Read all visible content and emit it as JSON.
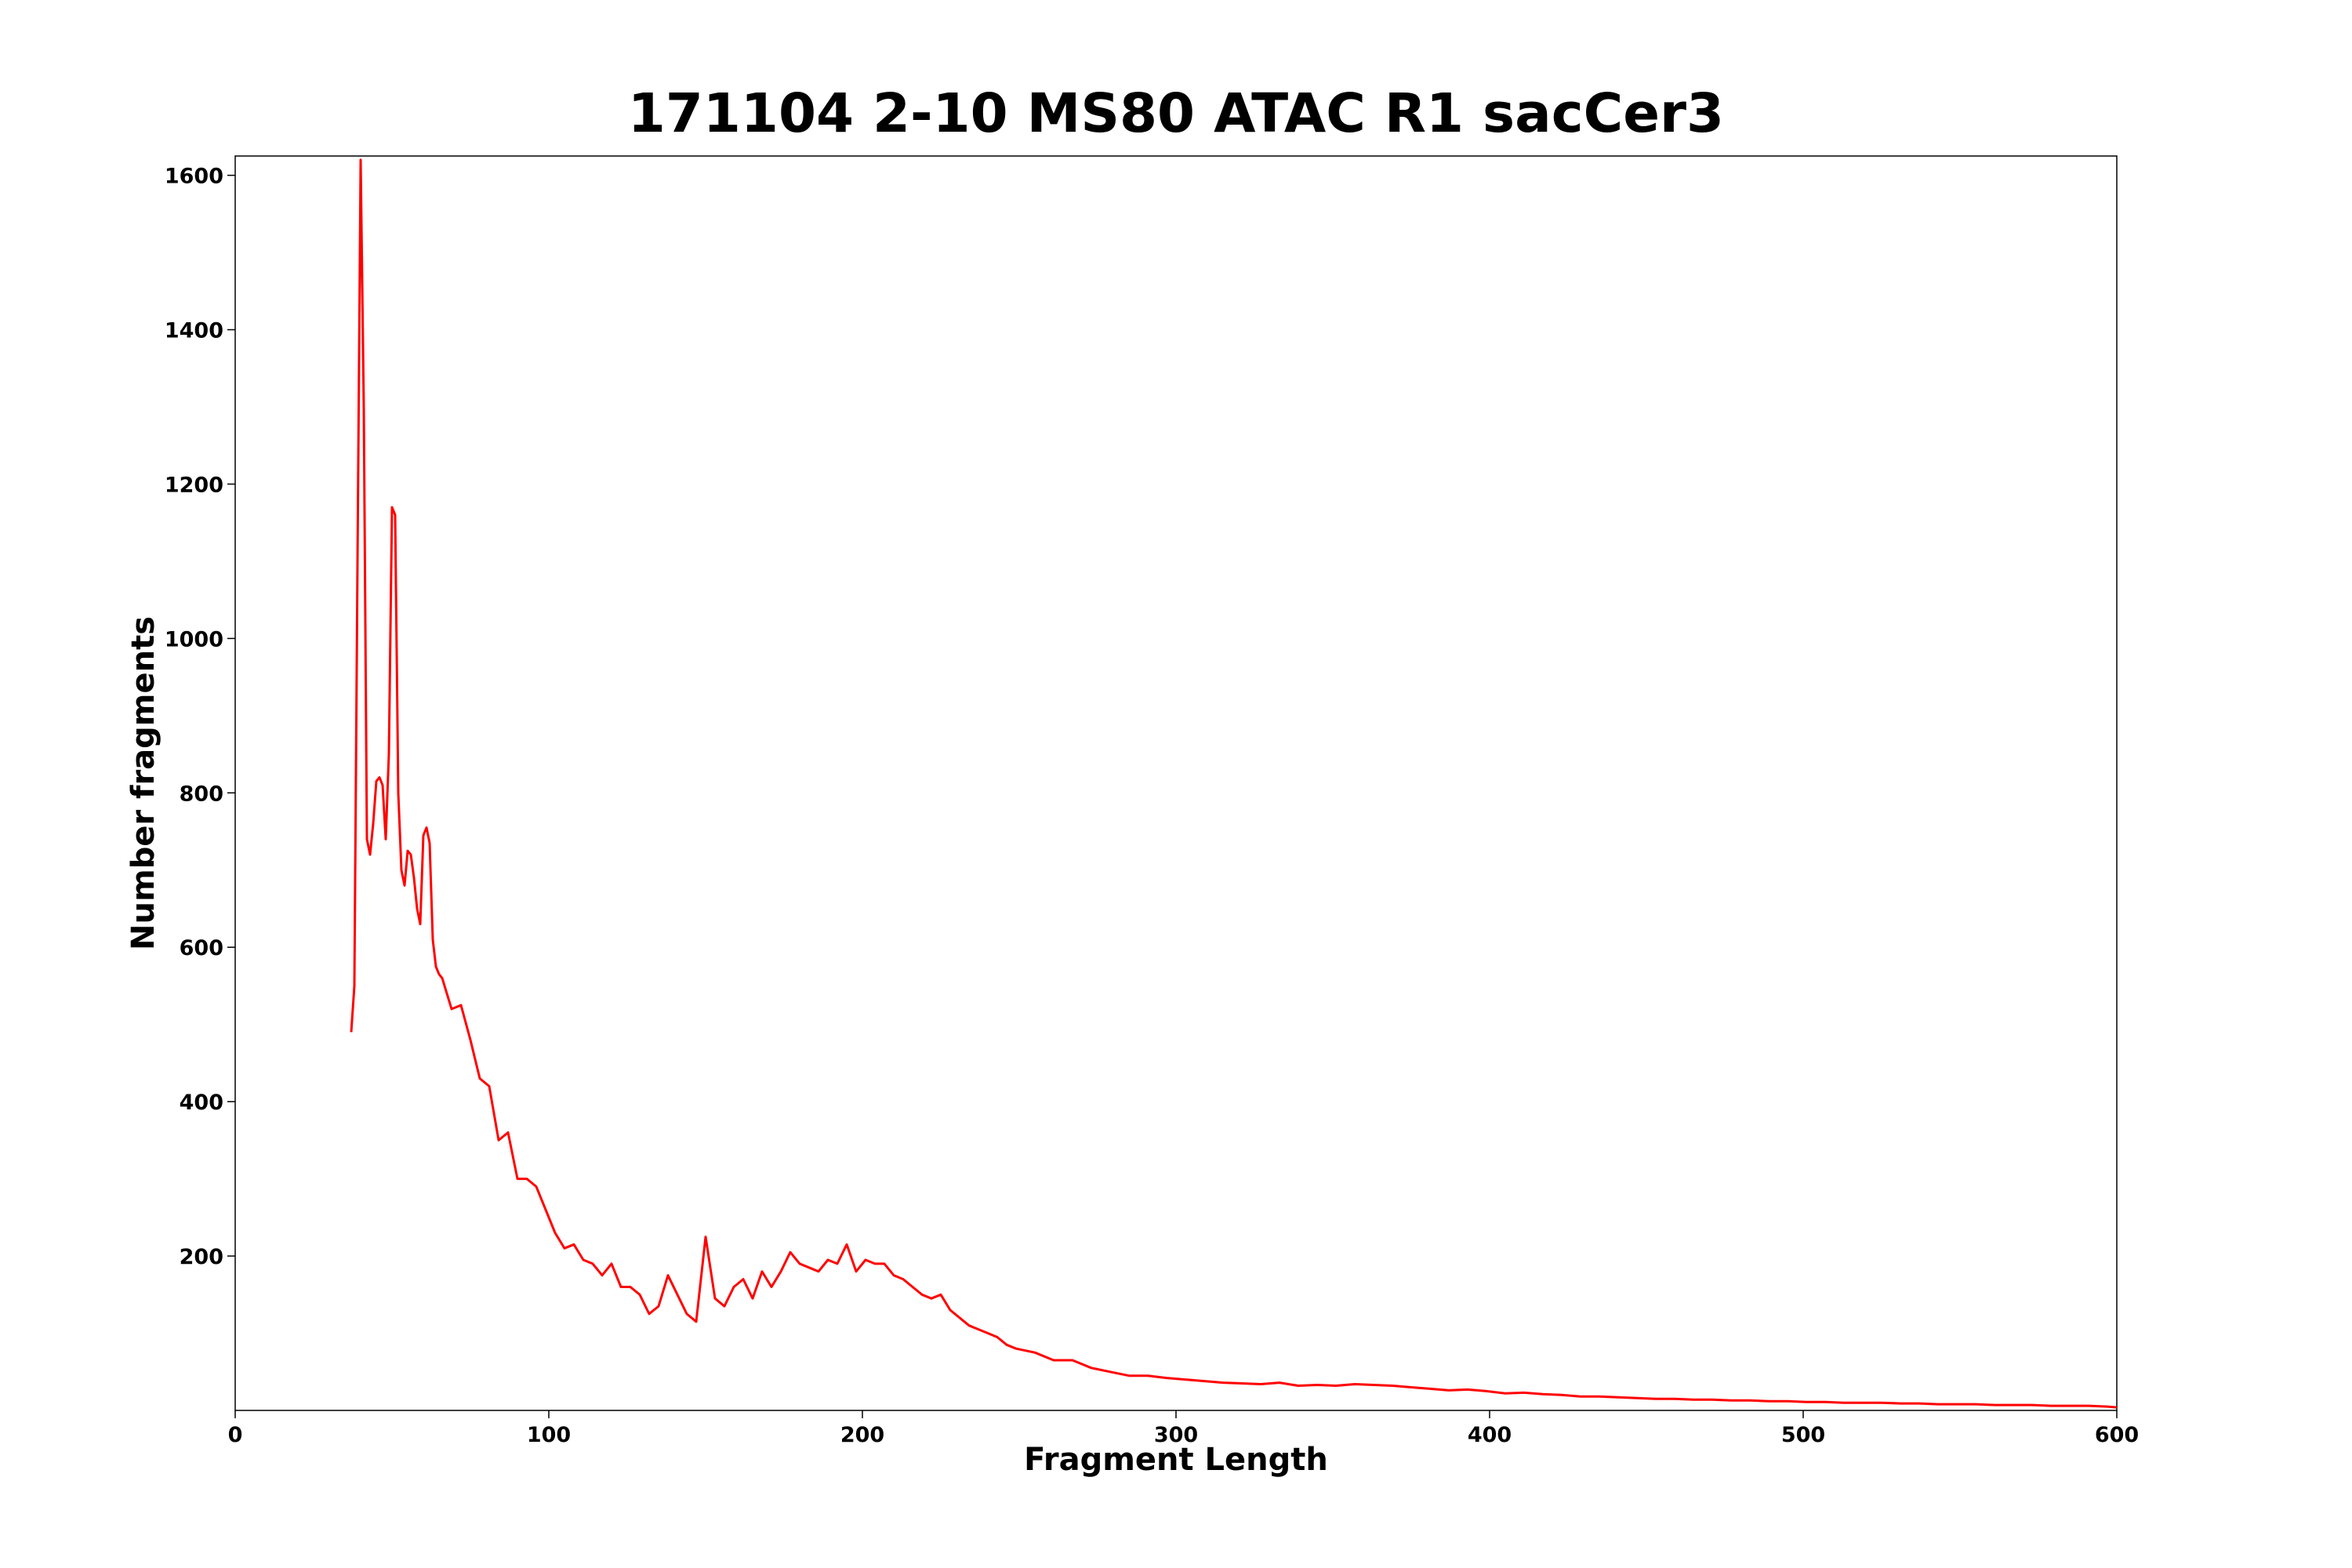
{
  "chart_data": {
    "type": "line",
    "title": "171104 2-10 MS80 ATAC R1 sacCer3",
    "x_label": "Fragment Length",
    "y_label": "Number fragments",
    "xlim": [
      0,
      600
    ],
    "xticks": [
      0,
      100,
      200,
      300,
      400,
      500,
      600
    ],
    "ylim": [
      0,
      1625
    ],
    "yticks": [
      200,
      400,
      600,
      800,
      1000,
      1200,
      1400,
      1600
    ],
    "grid": false,
    "series": [
      {
        "color": "#ff0000",
        "x": [
          37,
          38,
          39,
          40,
          41,
          42,
          43,
          44,
          45,
          46,
          47,
          48,
          49,
          50,
          51,
          52,
          53,
          54,
          55,
          56,
          57,
          58,
          59,
          60,
          61,
          62,
          63,
          64,
          65,
          66,
          69,
          72,
          75,
          78,
          81,
          84,
          87,
          90,
          93,
          96,
          99,
          102,
          105,
          108,
          111,
          114,
          117,
          120,
          123,
          126,
          129,
          132,
          135,
          138,
          141,
          144,
          147,
          150,
          153,
          156,
          159,
          162,
          165,
          168,
          171,
          174,
          177,
          180,
          183,
          186,
          189,
          192,
          195,
          198,
          201,
          204,
          207,
          210,
          213,
          216,
          219,
          222,
          225,
          228,
          231,
          234,
          237,
          240,
          243,
          246,
          249,
          255,
          261,
          267,
          273,
          279,
          285,
          291,
          297,
          303,
          309,
          315,
          321,
          327,
          333,
          339,
          345,
          351,
          357,
          363,
          369,
          375,
          381,
          387,
          393,
          399,
          405,
          411,
          417,
          423,
          429,
          435,
          441,
          447,
          453,
          459,
          465,
          471,
          477,
          483,
          489,
          495,
          501,
          507,
          513,
          519,
          525,
          531,
          537,
          543,
          549,
          555,
          561,
          567,
          573,
          579,
          585,
          591,
          597,
          600
        ],
        "values": [
          490,
          550,
          1100,
          1620,
          1300,
          740,
          720,
          760,
          815,
          820,
          810,
          740,
          850,
          1170,
          1160,
          800,
          700,
          680,
          725,
          720,
          690,
          650,
          630,
          745,
          755,
          735,
          610,
          575,
          565,
          560,
          520,
          525,
          480,
          430,
          420,
          350,
          360,
          300,
          300,
          290,
          260,
          230,
          210,
          215,
          195,
          190,
          175,
          190,
          160,
          160,
          150,
          125,
          135,
          175,
          150,
          125,
          115,
          225,
          145,
          135,
          160,
          170,
          145,
          180,
          160,
          180,
          205,
          190,
          185,
          180,
          195,
          190,
          215,
          180,
          195,
          190,
          190,
          175,
          170,
          160,
          150,
          145,
          150,
          130,
          120,
          110,
          105,
          100,
          95,
          85,
          80,
          75,
          65,
          65,
          55,
          50,
          45,
          45,
          42,
          40,
          38,
          36,
          35,
          34,
          36,
          32,
          33,
          32,
          34,
          33,
          32,
          30,
          28,
          26,
          27,
          25,
          22,
          23,
          21,
          20,
          18,
          18,
          17,
          16,
          15,
          15,
          14,
          14,
          13,
          13,
          12,
          12,
          11,
          11,
          10,
          10,
          10,
          9,
          9,
          8,
          8,
          8,
          7,
          7,
          7,
          6,
          6,
          6,
          5,
          4
        ]
      }
    ]
  }
}
